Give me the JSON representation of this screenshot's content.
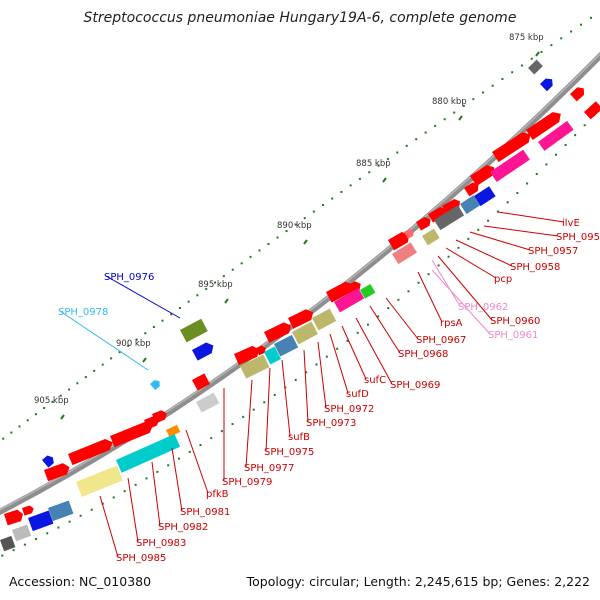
{
  "title": "Streptococcus pneumoniae Hungary19A-6, complete genome",
  "footer": {
    "accession": "Accession: NC_010380",
    "summary": "Topology: circular; Length: 2,245,615 bp; Genes: 2,222"
  },
  "colors": {
    "backbone": "#8c8c8c",
    "tick": "#1f7a1f",
    "label_red": "#cc0000",
    "label_blue": "#0000cc",
    "label_cyan": "#33bbee",
    "label_pink": "#ee88cc",
    "text_dark": "#333333"
  },
  "kbp_labels": [
    "875 kbp",
    "880 kbp",
    "885 kbp",
    "890 kbp",
    "895 kbp",
    "900 kbp",
    "905 kbp"
  ],
  "gene_labels": [
    {
      "text": "ilvE",
      "color": "red"
    },
    {
      "text": "SPH_0956",
      "color": "red"
    },
    {
      "text": "SPH_0957",
      "color": "red"
    },
    {
      "text": "SPH_0958",
      "color": "red"
    },
    {
      "text": "pcp",
      "color": "red"
    },
    {
      "text": "SPH_0962",
      "color": "pink"
    },
    {
      "text": "SPH_0960",
      "color": "red"
    },
    {
      "text": "SPH_0961",
      "color": "pink"
    },
    {
      "text": "rpsA",
      "color": "red"
    },
    {
      "text": "SPH_0967",
      "color": "red"
    },
    {
      "text": "SPH_0968",
      "color": "red"
    },
    {
      "text": "SPH_0969",
      "color": "red"
    },
    {
      "text": "sufC",
      "color": "red"
    },
    {
      "text": "sufD",
      "color": "red"
    },
    {
      "text": "SPH_0972",
      "color": "red"
    },
    {
      "text": "SPH_0973",
      "color": "red"
    },
    {
      "text": "sufB",
      "color": "red"
    },
    {
      "text": "SPH_0975",
      "color": "red"
    },
    {
      "text": "SPH_0977",
      "color": "red"
    },
    {
      "text": "SPH_0979",
      "color": "red"
    },
    {
      "text": "pfkB",
      "color": "red"
    },
    {
      "text": "SPH_0981",
      "color": "red"
    },
    {
      "text": "SPH_0982",
      "color": "red"
    },
    {
      "text": "SPH_0983",
      "color": "red"
    },
    {
      "text": "SPH_0985",
      "color": "red"
    },
    {
      "text": "SPH_0976",
      "color": "blue"
    },
    {
      "text": "SPH_0978",
      "color": "cyan"
    }
  ]
}
